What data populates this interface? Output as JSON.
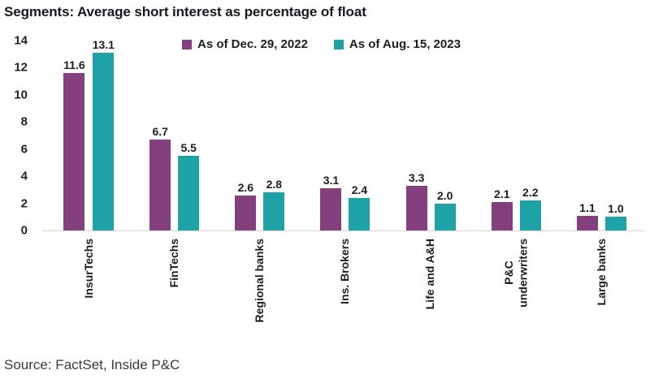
{
  "title": "Segments: Average short interest as percentage of float",
  "source": "Source: FactSet, Inside P&C",
  "chart_data": {
    "type": "bar",
    "title": "Segments: Average short interest as percentage of float",
    "categories": [
      "InsurTechs",
      "FinTechs",
      "Regional banks",
      "Ins. Brokers",
      "Life and A&H",
      "P&C\nunderwriters",
      "Large banks"
    ],
    "series": [
      {
        "name": "As of Dec. 29, 2022",
        "color": "#84407e",
        "values": [
          11.6,
          6.7,
          2.6,
          3.1,
          3.3,
          2.1,
          1.1
        ]
      },
      {
        "name": "As of Aug. 15, 2023",
        "color": "#1fa2a5",
        "values": [
          13.1,
          5.5,
          2.8,
          2.4,
          2.0,
          2.2,
          1.0
        ]
      }
    ],
    "xlabel": "",
    "ylabel": "",
    "ylim": [
      0,
      14
    ],
    "yticks": [
      0,
      2,
      4,
      6,
      8,
      10,
      12,
      14
    ],
    "grid": false,
    "legend_position": "top",
    "value_labels": true,
    "value_label_decimals": 1
  }
}
